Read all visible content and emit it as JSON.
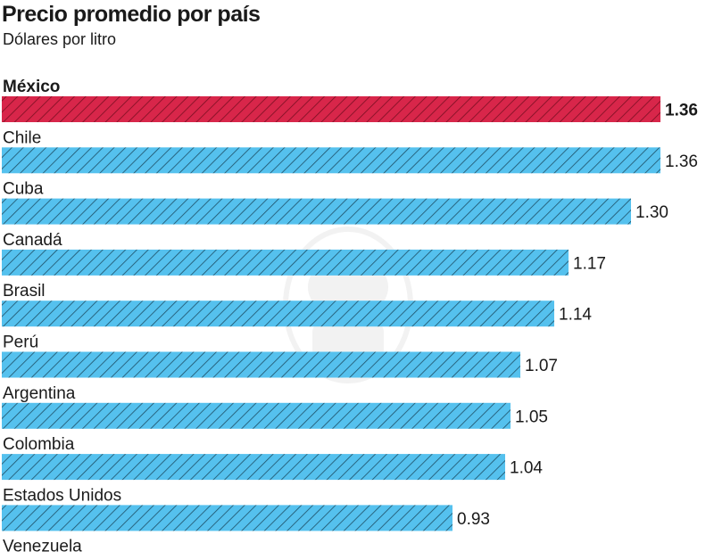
{
  "title": "Precio promedio por país",
  "subtitle": "Dólares por litro",
  "colors": {
    "highlight": "#d8264a",
    "bar": "#55c1ee",
    "hatch_highlight": "#7a0f22",
    "hatch": "#1d4f66"
  },
  "chart_data": {
    "type": "bar",
    "orientation": "horizontal",
    "title": "Precio promedio por país",
    "subtitle": "Dólares por litro",
    "categories": [
      "México",
      "Chile",
      "Cuba",
      "Canadá",
      "Brasil",
      "Perú",
      "Argentina",
      "Colombia",
      "Estados Unidos",
      "Venezuela"
    ],
    "values": [
      1.36,
      1.36,
      1.3,
      1.17,
      1.14,
      1.07,
      1.05,
      1.04,
      0.93,
      null
    ],
    "value_labels": [
      "1.36",
      "1.36",
      "1.30",
      "1.17",
      "1.14",
      "1.07",
      "1.05",
      "1.04",
      "0.93",
      ""
    ],
    "highlight_category": "México",
    "xlim": [
      0,
      1.36
    ],
    "grid": false,
    "pattern": "diagonal-hatch"
  }
}
